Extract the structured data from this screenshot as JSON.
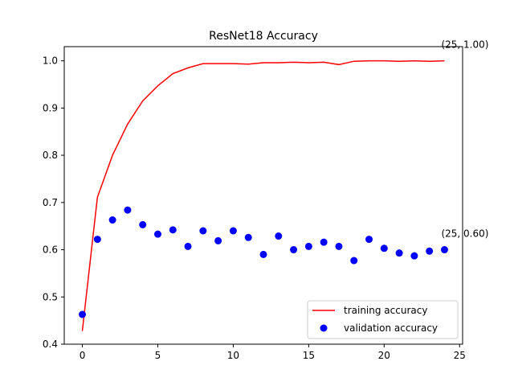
{
  "chart_data": {
    "type": "line",
    "title": "ResNet18 Accuracy",
    "xlabel": "",
    "ylabel": "",
    "xlim": [
      -1.2,
      25.2
    ],
    "ylim": [
      0.4,
      1.03
    ],
    "xticks": [
      0,
      5,
      10,
      15,
      20,
      25
    ],
    "yticks": [
      0.4,
      0.5,
      0.6,
      0.7,
      0.8,
      0.9,
      1.0
    ],
    "xtick_labels": [
      "0",
      "5",
      "10",
      "15",
      "20",
      "25"
    ],
    "ytick_labels": [
      "0.4",
      "0.5",
      "0.6",
      "0.7",
      "0.8",
      "0.9",
      "1.0"
    ],
    "grid": false,
    "legend_position": "lower-right",
    "series": [
      {
        "name": "training accuracy",
        "style": "line",
        "color": "#ff0000",
        "x": [
          0,
          1,
          2,
          3,
          4,
          5,
          6,
          7,
          8,
          9,
          10,
          11,
          12,
          13,
          14,
          15,
          16,
          17,
          18,
          19,
          20,
          21,
          22,
          23,
          24
        ],
        "values": [
          0.428,
          0.711,
          0.8,
          0.866,
          0.915,
          0.947,
          0.973,
          0.985,
          0.994,
          0.994,
          0.994,
          0.993,
          0.996,
          0.996,
          0.997,
          0.996,
          0.997,
          0.992,
          0.999,
          1.0,
          1.0,
          0.999,
          1.0,
          0.999,
          1.0
        ]
      },
      {
        "name": "validation accuracy",
        "style": "markers",
        "color": "#0000ff",
        "x": [
          0,
          1,
          2,
          3,
          4,
          5,
          6,
          7,
          8,
          9,
          10,
          11,
          12,
          13,
          14,
          15,
          16,
          17,
          18,
          19,
          20,
          21,
          22,
          23,
          24
        ],
        "values": [
          0.463,
          0.622,
          0.663,
          0.684,
          0.653,
          0.633,
          0.642,
          0.607,
          0.64,
          0.619,
          0.64,
          0.626,
          0.59,
          0.629,
          0.6,
          0.607,
          0.616,
          0.607,
          0.577,
          0.622,
          0.603,
          0.593,
          0.587,
          0.597,
          0.6
        ]
      }
    ],
    "annotations": [
      {
        "text": "(25, 1.00)",
        "x": 24,
        "y": 1.0
      },
      {
        "text": "(25, 0.60)",
        "x": 24,
        "y": 0.6
      }
    ]
  }
}
